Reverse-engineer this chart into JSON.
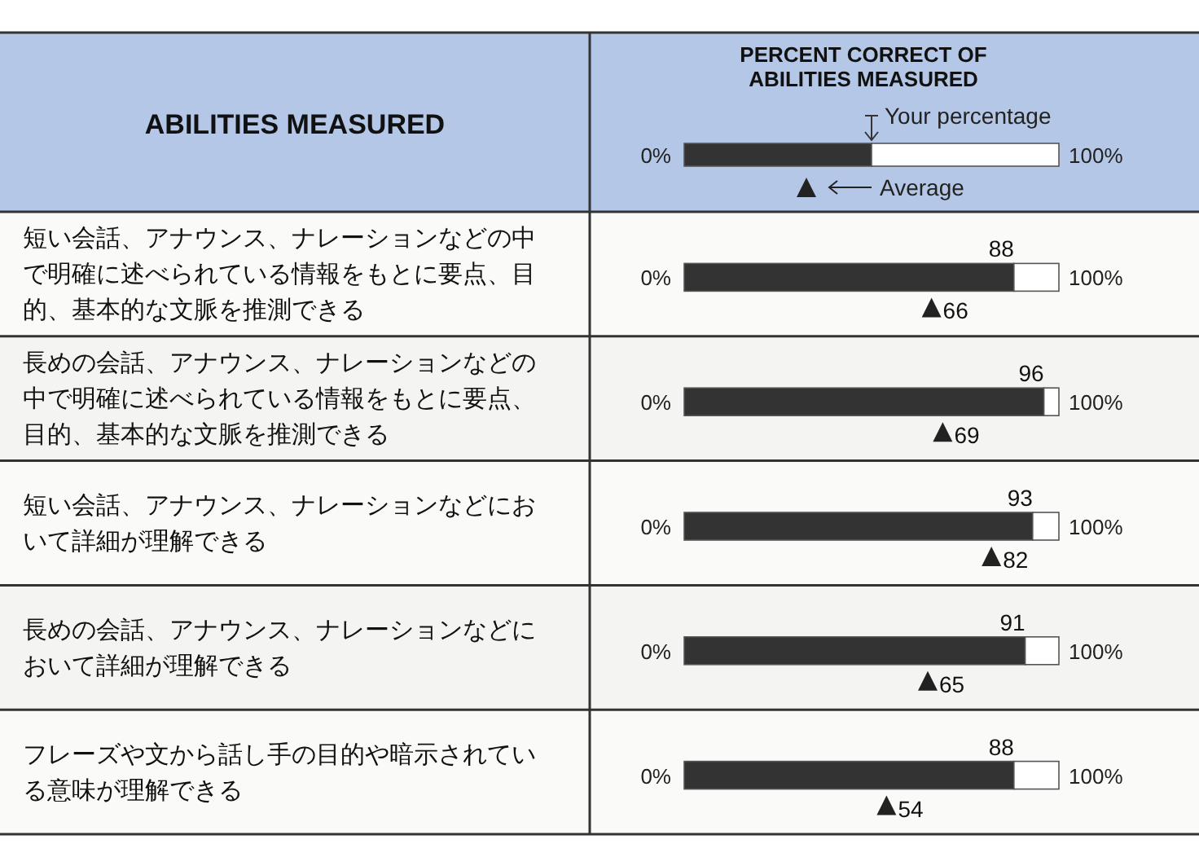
{
  "chart_data": {
    "type": "bar",
    "orientation": "horizontal",
    "stacked": true,
    "title": "PERCENT CORRECT OF ABILITIES MEASURED",
    "ylabel": "ABILITIES MEASURED",
    "categories": [
      "短い会話、アナウンス、ナレーションなどの中で明確に述べられている情報をもとに要点、目的、基本的な文脈を推測できる",
      "長めの会話、アナウンス、ナレーションなどの中で明確に述べられている情報をもとに要点、目的、基本的な文脈を推測できる",
      "短い会話、アナウンス、ナレーションなどにおいて詳細が理解できる",
      "長めの会話、アナウンス、ナレーションなどにおいて詳細が理解できる",
      "フレーズや文から話し手の目的や暗示されている意味が理解できる"
    ],
    "xlim": [
      0,
      100
    ],
    "annotations": [
      "0%",
      "100%"
    ],
    "series": [
      {
        "name": "Your percentage",
        "color": "#333333",
        "values": [
          88,
          96,
          93,
          91,
          88
        ],
        "value_labels": [
          "88",
          "96",
          "93",
          "91",
          "88"
        ]
      },
      {
        "color": "#ffffff",
        "values": [
          12,
          4,
          7,
          9,
          12
        ]
      },
      {
        "name": "Average",
        "type": "scatter",
        "marker": "triangle",
        "color": "#222222",
        "values": [
          66,
          69,
          82,
          65,
          54
        ],
        "value_labels": [
          "66",
          "69",
          "82",
          "65",
          "54"
        ]
      }
    ],
    "legend": "top right"
  }
}
